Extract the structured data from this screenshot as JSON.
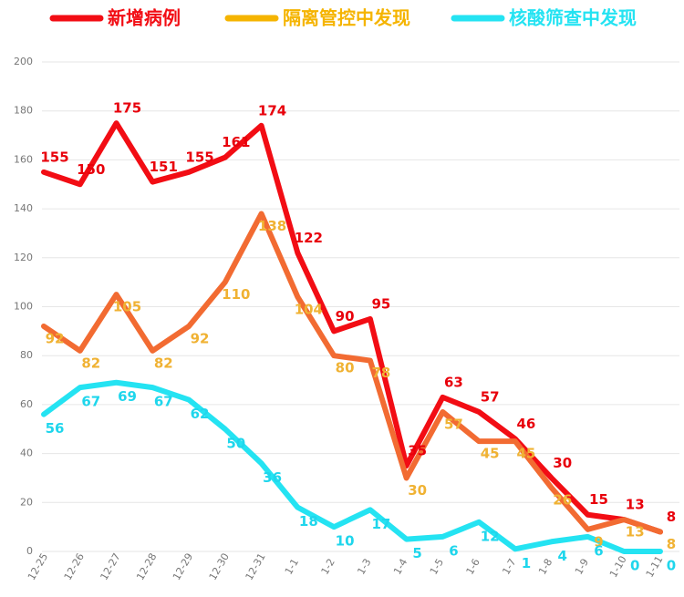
{
  "chart_data": {
    "type": "line",
    "categories": [
      "12-25",
      "12-26",
      "12-27",
      "12-28",
      "12-29",
      "12-30",
      "12-31",
      "1-1",
      "1-2",
      "1-3",
      "1-4",
      "1-5",
      "1-6",
      "1-7",
      "1-8",
      "1-9",
      "1-10",
      "1-11"
    ],
    "series": [
      {
        "name": "新增病例",
        "color": "#f20d14",
        "label_color": "#e8000b",
        "values": [
          155,
          150,
          175,
          151,
          155,
          161,
          174,
          122,
          90,
          95,
          35,
          63,
          57,
          46,
          30,
          15,
          13,
          8
        ]
      },
      {
        "name": "隔离管控中发现",
        "color": "#f26b32",
        "label_color": "#f0b233",
        "legend_color": "#f5b400",
        "values": [
          92,
          82,
          105,
          82,
          92,
          110,
          138,
          104,
          80,
          78,
          30,
          57,
          45,
          45,
          26,
          9,
          13,
          8
        ]
      },
      {
        "name": "核酸筛查中发现",
        "color": "#24e3f2",
        "label_color": "#1fd6ec",
        "values": [
          56,
          67,
          69,
          67,
          62,
          50,
          36,
          18,
          10,
          17,
          5,
          6,
          12,
          1,
          4,
          6,
          0,
          0
        ]
      }
    ],
    "ylim": [
      0,
      200
    ],
    "yticks": [
      0,
      20,
      40,
      60,
      80,
      100,
      120,
      140,
      160,
      180,
      200
    ],
    "grid": true
  }
}
